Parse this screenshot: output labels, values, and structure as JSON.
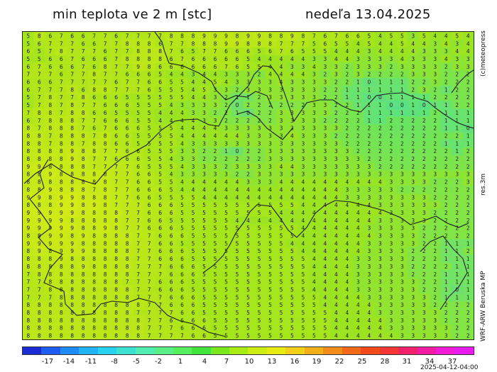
{
  "header": {
    "title": "min teplota ve 2 m [stc]",
    "date": "nedeľa 13.04.2025"
  },
  "side_labels": {
    "credit": "(c)meteopress",
    "resolution": "res.3m",
    "model": "WRF-ARW Beruska MP"
  },
  "colorbar": {
    "ticks": [
      "-17",
      "-14",
      "-11",
      "-8",
      "-5",
      "-2",
      "1",
      "4",
      "7",
      "10",
      "13",
      "16",
      "19",
      "22",
      "25",
      "28",
      "31",
      "34",
      "37"
    ],
    "colors": [
      "#1a2bd6",
      "#1f5cf0",
      "#1f8cf5",
      "#21b4f5",
      "#27d3ef",
      "#3be2d2",
      "#52eeb1",
      "#5af088",
      "#58ef5e",
      "#42e53b",
      "#7ae81c",
      "#a8ec14",
      "#cdee12",
      "#e7ea13",
      "#f2d01a",
      "#f2af1a",
      "#f28c1a",
      "#f2691a",
      "#f24a1a",
      "#f23636",
      "#f2216b",
      "#f21ca4",
      "#f21cd8",
      "#e91cf0"
    ]
  },
  "timestamp": "2025-04-12-04:00",
  "map": {
    "rows": [
      "5 8 6 7 6 6 7 7 6 7 7 7 7 8 8 8 9 9 9 8 9 9 8 8 9 8 7 6 7 6 6 5 4 5 5 3 5 4 4 5 4",
      "5 6 7 7 7 6 6 7 7 8 8 8 6 7 7 8 8 8 9 9 8 8 8 7 7 7 5 6 5 5 4 5 4 4 5 4 4 3 4 3 4",
      "6 5 7 8 7 7 7 6 7 7 8 8 8 7 6 5 7 7 6 6 6 5 6 7 6 5 5 5 4 4 4 3 4 4 4 4 3 3 3 4 4",
      "5 5 6 6 7 6 6 6 7 8 8 8 8 6 7 6 6 6 6 6 5 4 4 4 4 4 3 3 4 4 3 3 3 3 4 3 3 3 4 3 3",
      "6 7 6 6 6 7 6 8 7 7 9 8 6 6 6 6 6 6 7 6 5 5 4 4 3 3 4 3 3 2 3 3 3 2 3 3 3 3 2 3 3",
      "7 7 7 6 7 7 8 7 7 6 6 6 5 4 4 3 4 4 3 3 3 2 4 4 4 4 3 2 3 2 3 2 2 2 2 3 3 3 2 2 2",
      "6 6 6 7 7 7 7 7 6 7 7 6 6 5 5 4 4 5 4 3 3 3 3 4 3 3 3 3 2 2 1 0 1 1 1 2 2 3 2 2 2",
      "6 7 7 7 8 6 8 8 7 7 7 6 5 5 5 4 5 3 3 2 3 3 3 3 3 3 3 2 2 1 1 1 1 1 1 2 3 2 1 2 2",
      "5 7 8 7 7 8 6 6 6 5 5 5 5 5 5 4 4 3 2 1 1 2 3 3 3 3 3 2 2 1 1 0 0 1 1 1 1 2 2 2 2",
      "5 7 8 7 8 7 7 6 6 6 5 5 5 4 3 3 3 3 2 0 2 2 2 2 2 2 3 3 2 2 1 1 1 0 0 1 0 1 1 2 2",
      "7 8 8 7 8 8 6 6 5 5 5 5 4 4 4 3 3 2 2 1 0 2 2 3 3 3 3 3 2 2 2 1 1 1 1 1 1 2 1 1 1",
      "6 7 8 8 8 7 7 6 6 6 5 5 4 4 4 4 3 3 2 2 2 2 2 3 3 3 3 2 2 2 2 1 1 2 2 2 2 2 1 1 1",
      "8 7 8 8 8 7 6 7 6 6 6 5 5 5 4 4 4 4 3 3 3 3 3 3 3 3 3 3 3 2 2 2 2 2 2 2 2 2 1 1 0",
      "8 8 7 8 8 8 7 8 6 6 5 5 5 5 4 4 4 4 4 4 3 3 3 3 4 3 3 3 2 2 2 2 2 2 2 2 2 2 2 2 1",
      "8 8 7 8 8 7 8 8 6 6 5 5 5 5 4 3 3 3 3 3 3 3 3 3 3 3 3 3 3 2 2 2 2 2 2 2 2 2 1 1 1",
      "8 8 8 8 9 8 8 7 7 6 6 5 5 5 3 3 2 2 1 0 2 2 3 3 3 3 3 3 3 3 2 2 2 2 2 2 2 2 2 1 2",
      "8 8 8 8 9 8 7 7 6 6 6 5 5 4 3 3 2 2 2 2 2 2 3 3 3 3 3 3 3 3 3 2 2 2 2 2 2 2 2 2 2",
      "9 9 8 8 8 8 7 7 7 7 6 5 5 5 4 3 3 3 2 3 3 3 3 4 4 3 3 3 3 3 3 3 2 2 2 2 2 2 2 2 2",
      "8 8 9 8 8 8 8 8 7 7 6 6 5 4 3 3 3 3 3 2 2 3 3 3 3 3 3 3 3 3 3 3 3 3 3 3 3 3 3 3 3",
      "8 8 8 8 8 8 8 8 7 7 6 6 5 5 4 4 4 4 4 4 3 3 3 4 4 4 4 4 4 4 4 4 4 3 3 3 3 2 2 2 3",
      "8 8 9 8 8 8 7 8 7 7 6 6 6 5 4 4 4 4 4 4 4 4 4 4 4 4 4 4 4 3 3 3 3 3 2 2 2 2 2 2 2",
      "9 9 8 9 9 8 8 8 7 7 6 6 5 5 5 5 4 4 4 4 4 4 4 4 4 4 4 4 4 3 3 3 3 3 3 3 3 2 2 2 2",
      "8 8 8 9 9 8 9 8 7 7 7 6 6 6 5 5 5 5 5 5 5 5 5 5 5 4 4 4 4 4 4 4 3 3 3 3 3 3 2 2 2",
      "9 9 9 9 9 8 8 8 8 7 7 6 6 6 5 5 5 5 5 5 5 5 5 4 4 4 4 4 4 4 4 4 4 3 3 3 3 2 2 2 2",
      "9 9 9 9 8 8 8 8 8 7 7 6 6 5 5 5 5 5 5 4 4 4 4 4 4 4 4 4 4 4 4 4 3 3 3 3 3 2 2 2 2",
      "9 9 9 9 9 8 8 9 8 7 7 6 6 6 5 5 5 5 5 5 5 5 5 5 5 4 4 4 4 4 4 3 3 3 3 3 2 2 2 2 2",
      "8 8 9 9 8 9 8 8 8 8 7 7 6 6 6 5 5 5 5 5 5 5 5 5 5 4 4 4 4 4 4 4 3 3 3 3 2 2 2 2 2",
      "9 9 9 9 9 8 8 8 8 8 7 7 6 6 5 5 5 5 5 5 5 5 5 5 4 4 4 4 4 4 4 3 3 3 3 3 2 2 1 1 1",
      "8 9 8 9 9 9 8 8 8 8 7 7 6 6 6 5 5 5 5 5 5 5 5 5 5 4 4 4 4 4 4 3 3 3 3 2 2 2 1 1 2",
      "8 8 8 9 8 8 8 8 8 8 7 7 6 6 6 5 5 5 5 5 5 5 5 5 5 5 4 4 4 4 3 3 3 3 3 2 2 2 1 1 1",
      "8 8 8 8 8 9 8 8 8 8 7 7 7 6 6 6 5 5 5 5 5 5 5 5 5 5 4 4 4 4 3 3 3 3 3 2 2 2 2 1 1",
      "7 8 8 8 8 8 8 8 8 8 7 7 7 6 6 6 5 5 5 5 5 5 5 5 5 5 4 4 4 4 3 3 3 3 3 2 2 2 1 1 1",
      "7 7 8 8 8 8 8 8 8 7 7 7 6 6 6 5 5 5 5 5 5 5 5 5 5 5 4 4 4 4 3 3 3 3 3 3 2 2 1 1 1",
      "7 7 8 8 8 8 8 8 8 8 7 7 6 6 6 5 5 5 5 5 5 5 5 5 5 5 4 4 4 4 3 3 3 3 3 3 2 2 1 0 1",
      "7 7 7 8 8 8 8 8 8 8 7 7 7 6 6 6 5 5 5 5 5 5 5 5 5 5 5 4 4 4 4 3 3 3 3 3 3 2 1 1 1",
      "8 8 8 8 8 8 8 8 8 8 8 7 7 6 6 6 5 5 5 5 5 5 5 5 5 5 5 4 4 4 4 4 3 3 3 3 3 2 2 2 2",
      "8 8 8 8 8 8 8 8 8 8 7 7 7 7 6 6 5 5 5 5 5 5 5 5 5 5 5 5 4 4 4 4 3 3 3 3 3 3 2 2 2",
      "8 8 8 8 8 8 8 8 8 8 8 7 7 6 6 6 6 5 5 5 5 5 5 5 5 5 5 5 4 4 4 4 4 3 3 3 3 3 2 2 2",
      "8 8 8 8 8 8 8 8 8 8 8 7 7 7 6 6 6 5 5 5 5 5 5 5 5 5 5 5 4 4 4 4 4 3 3 3 3 3 3 2 2",
      "8 8 8 8 8 8 8 8 8 8 8 7 7 7 7 6 6 5 5 5 5 5 5 5 5 5 5 5 4 4 4 4 4 4 3 3 3 3 3 2 2"
    ]
  }
}
